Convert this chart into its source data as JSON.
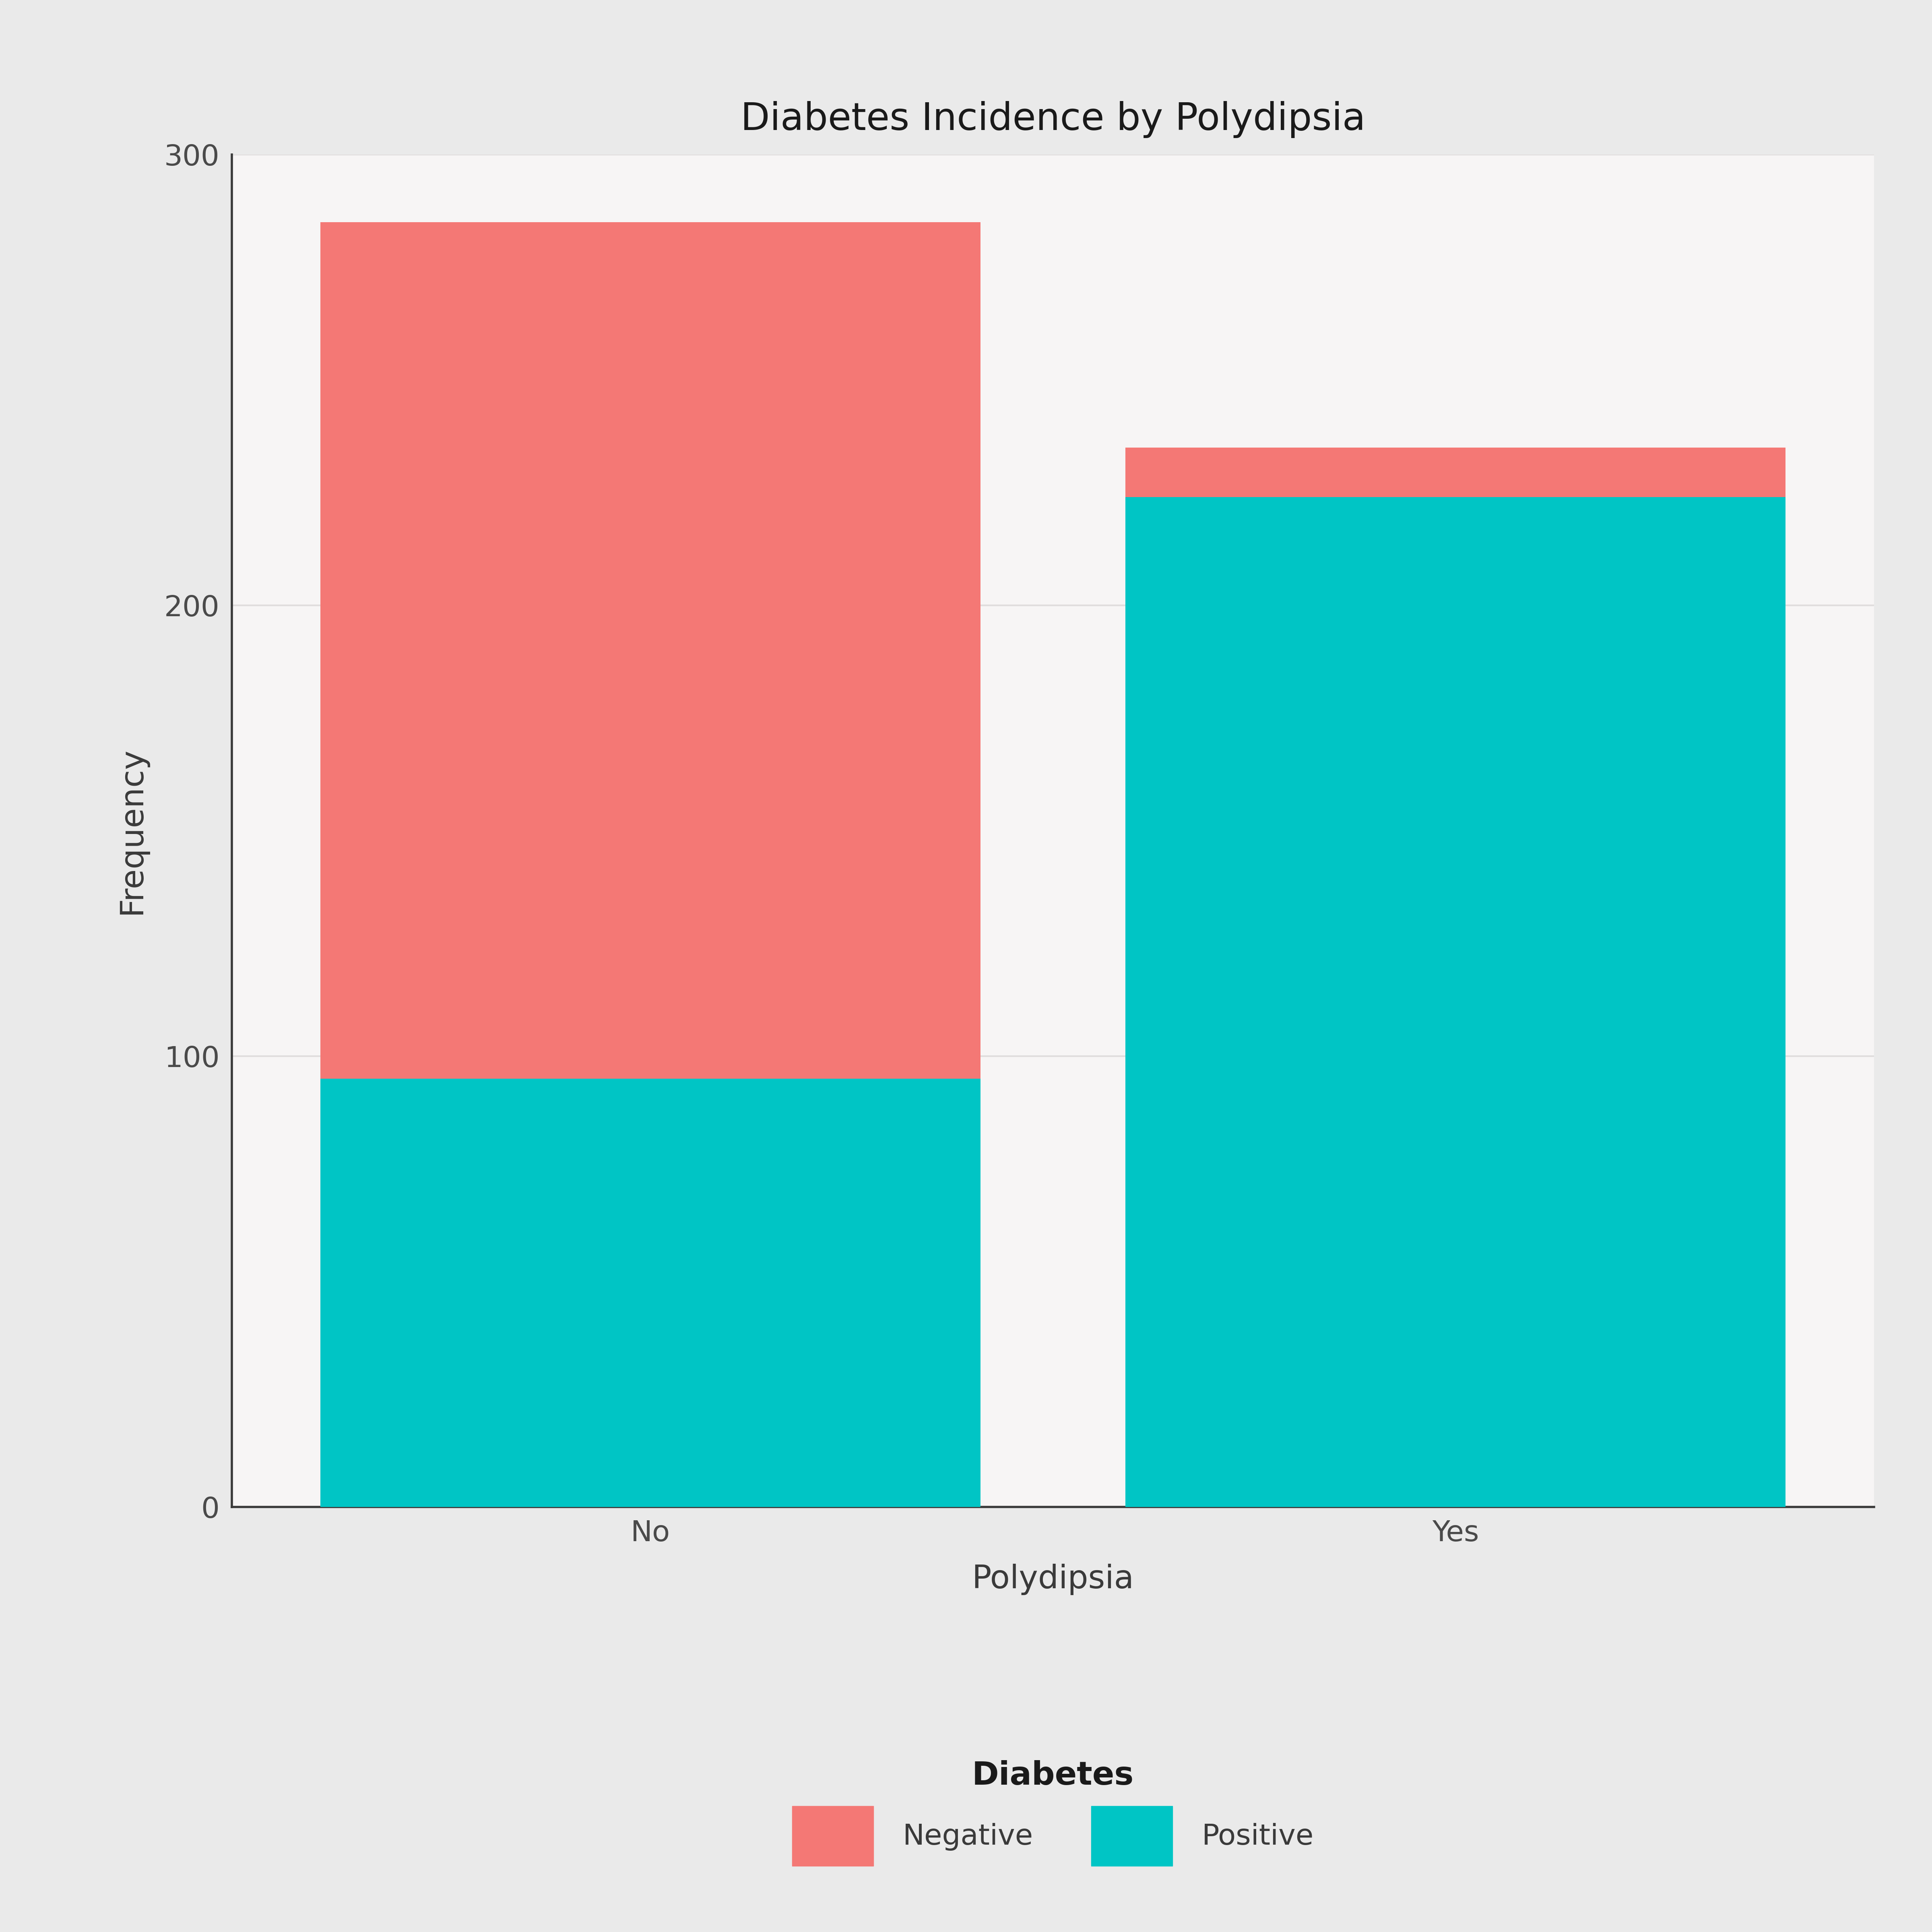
{
  "title": "Diabetes Incidence by Polydipsia",
  "xlabel": "Polydipsia",
  "ylabel": "Frequency",
  "categories": [
    "No",
    "Yes"
  ],
  "positive_values": [
    95,
    224
  ],
  "negative_values": [
    190,
    11
  ],
  "color_positive": "#00C5C5",
  "color_negative": "#F47875",
  "ylim": [
    0,
    300
  ],
  "yticks": [
    0,
    100,
    200,
    300
  ],
  "background_color": "#EAEAEA",
  "panel_color": "#F7F5F5",
  "title_fontsize": 68,
  "axis_label_fontsize": 58,
  "tick_fontsize": 52,
  "legend_fontsize": 52,
  "legend_title_fontsize": 58,
  "bar_width": 0.82,
  "grid_color": "#E0DDDD",
  "spine_color": "#3A3A3A"
}
